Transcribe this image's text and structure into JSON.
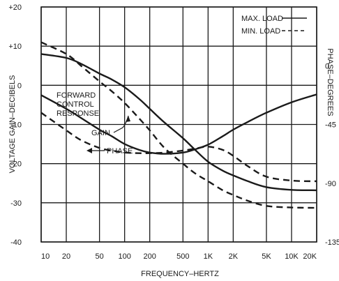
{
  "chart_data": {
    "type": "line",
    "title": "",
    "xlabel": "FREQUENCY–HERTZ",
    "ylabel": "VOLTAGE GAIN–DECIBELS",
    "y2label": "PHASE–DEGREES",
    "xscale": "log",
    "xlim": [
      10,
      20000
    ],
    "ylim": [
      -40,
      20
    ],
    "y2lim": [
      -135,
      45
    ],
    "grid": true,
    "legend_position": "top-right",
    "x_ticks": [
      {
        "value": 10,
        "label": "10"
      },
      {
        "value": 20,
        "label": "20"
      },
      {
        "value": 50,
        "label": "50"
      },
      {
        "value": 100,
        "label": "100"
      },
      {
        "value": 200,
        "label": "200"
      },
      {
        "value": 500,
        "label": "500"
      },
      {
        "value": 1000,
        "label": "1K"
      },
      {
        "value": 2000,
        "label": "2K"
      },
      {
        "value": 5000,
        "label": "5K"
      },
      {
        "value": 10000,
        "label": "10K"
      },
      {
        "value": 20000,
        "label": "20K"
      }
    ],
    "y_ticks": [
      {
        "value": 20,
        "label": "+20"
      },
      {
        "value": 10,
        "label": "+10"
      },
      {
        "value": 0,
        "label": "0"
      },
      {
        "value": -10,
        "label": "-10"
      },
      {
        "value": -20,
        "label": "-20"
      },
      {
        "value": -30,
        "label": "-30"
      },
      {
        "value": -40,
        "label": "-40"
      }
    ],
    "y2_ticks": [
      {
        "value": 0,
        "label": "0"
      },
      {
        "value": -45,
        "label": "-45"
      },
      {
        "value": -90,
        "label": "-90"
      },
      {
        "value": -135,
        "label": "-135"
      }
    ],
    "legend": [
      {
        "label": "MAX. LOAD",
        "style": "solid"
      },
      {
        "label": "MIN. LOAD",
        "style": "dashed"
      }
    ],
    "annotations": [
      {
        "lines": [
          "FORWARD",
          "CONTROL",
          "RESPONSE"
        ]
      },
      {
        "text": "GAIN"
      },
      {
        "text": "PHASE"
      }
    ],
    "series": [
      {
        "quantity": "gain",
        "load": "max",
        "style": "solid",
        "axis": "left",
        "x": [
          10,
          20,
          30,
          50,
          70,
          100,
          150,
          200,
          300,
          500,
          700,
          1000,
          1500,
          2000,
          3000,
          5000,
          10000,
          20000
        ],
        "values": [
          8.0,
          7.0,
          5.5,
          3.0,
          1.5,
          -0.5,
          -3.5,
          -6.0,
          -9.5,
          -13.5,
          -16.5,
          -19.5,
          -21.8,
          -23.0,
          -24.5,
          -26.0,
          -26.7,
          -26.8
        ]
      },
      {
        "quantity": "gain",
        "load": "min",
        "style": "dashed",
        "axis": "left",
        "x": [
          10,
          20,
          30,
          50,
          70,
          100,
          150,
          200,
          300,
          500,
          700,
          1000,
          1500,
          2000,
          3000,
          5000,
          10000,
          20000
        ],
        "values": [
          11.0,
          8.0,
          5.0,
          1.0,
          -1.5,
          -4.5,
          -8.5,
          -11.5,
          -16.0,
          -20.0,
          -22.5,
          -24.5,
          -26.8,
          -28.0,
          -29.5,
          -30.8,
          -31.2,
          -31.3
        ]
      },
      {
        "quantity": "phase",
        "load": "max",
        "style": "solid",
        "axis": "right",
        "x": [
          10,
          20,
          30,
          50,
          70,
          100,
          150,
          200,
          300,
          500,
          700,
          1000,
          1500,
          2000,
          3000,
          5000,
          10000,
          20000
        ],
        "values": [
          -22.5,
          -33.0,
          -40.0,
          -49.0,
          -54.0,
          -60.0,
          -64.5,
          -66.5,
          -67.5,
          -66.5,
          -64.0,
          -60.5,
          -54.0,
          -49.0,
          -43.0,
          -36.0,
          -28.0,
          -22.0
        ]
      },
      {
        "quantity": "phase",
        "load": "min",
        "style": "dashed",
        "axis": "right",
        "x": [
          10,
          20,
          30,
          50,
          70,
          100,
          150,
          200,
          300,
          500,
          700,
          1000,
          1500,
          2000,
          3000,
          5000,
          10000,
          20000
        ],
        "values": [
          -36.0,
          -49.5,
          -57.0,
          -63.0,
          -65.0,
          -66.5,
          -67.0,
          -67.0,
          -66.5,
          -65.0,
          -63.5,
          -62.0,
          -64.5,
          -69.0,
          -77.0,
          -85.0,
          -88.0,
          -88.5
        ]
      }
    ]
  }
}
